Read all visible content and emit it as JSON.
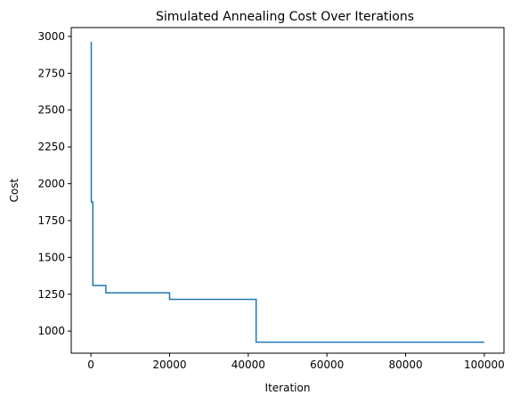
{
  "chart_data": {
    "type": "line",
    "title": "Simulated Annealing Cost Over Iterations",
    "xlabel": "Iteration",
    "ylabel": "Cost",
    "xlim": [
      -5000,
      105000
    ],
    "ylim": [
      850,
      3060
    ],
    "xticks": [
      0,
      20000,
      40000,
      60000,
      80000,
      100000
    ],
    "yticks": [
      1000,
      1250,
      1500,
      1750,
      2000,
      2250,
      2500,
      2750,
      3000
    ],
    "grid": false,
    "step": "post",
    "series": [
      {
        "color": "#1f77b4",
        "x": [
          0,
          100,
          200,
          500,
          3800,
          20000,
          42000,
          100000
        ],
        "y": [
          2960,
          1880,
          1875,
          1310,
          1260,
          1215,
          925,
          925
        ]
      }
    ]
  }
}
